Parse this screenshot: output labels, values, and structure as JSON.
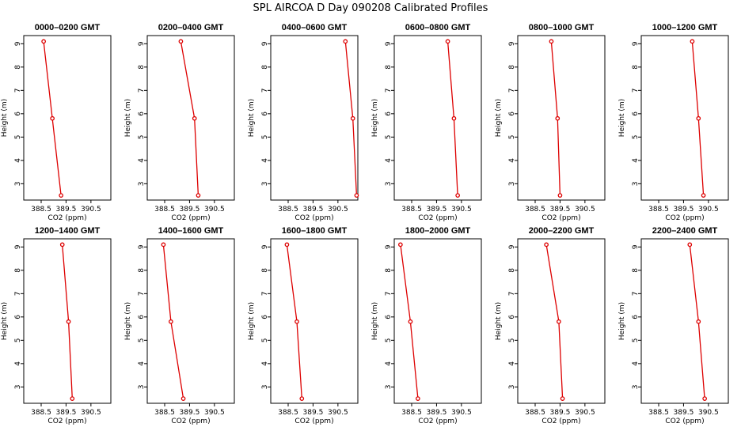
{
  "title": "SPL AIRCOA D  Day 090208  Calibrated Profiles",
  "chart_data": {
    "type": "line",
    "xlabel": "CO2 (ppm)",
    "ylabel": "Height (m)",
    "xlim": [
      387.8,
      391.3
    ],
    "ylim": [
      2.3,
      9.35
    ],
    "xticks": [
      388.5,
      389.5,
      390.5
    ],
    "xtick_labels": [
      "388.5",
      "389.5",
      "390.5"
    ],
    "yticks": [
      3,
      4,
      5,
      6,
      7,
      8,
      9
    ],
    "colors": {
      "series": "#dd0000"
    },
    "heights": [
      9.1,
      5.8,
      2.5
    ],
    "panels": [
      {
        "title": "0000–0200 GMT",
        "co2": [
          388.6,
          388.95,
          389.3
        ]
      },
      {
        "title": "0200–0400 GMT",
        "co2": [
          389.15,
          389.7,
          389.85
        ]
      },
      {
        "title": "0400–0600 GMT",
        "co2": [
          390.8,
          391.1,
          391.25
        ]
      },
      {
        "title": "0600–0800 GMT",
        "co2": [
          389.95,
          390.2,
          390.35
        ]
      },
      {
        "title": "0800–1000 GMT",
        "co2": [
          389.15,
          389.4,
          389.5
        ]
      },
      {
        "title": "1000–1200 GMT",
        "co2": [
          389.85,
          390.1,
          390.3
        ]
      },
      {
        "title": "1200–1400 GMT",
        "co2": [
          389.35,
          389.6,
          389.75
        ]
      },
      {
        "title": "1400–1600 GMT",
        "co2": [
          388.45,
          388.75,
          389.25
        ]
      },
      {
        "title": "1600–1800 GMT",
        "co2": [
          388.45,
          388.85,
          389.05
        ]
      },
      {
        "title": "1800–2000 GMT",
        "co2": [
          388.05,
          388.45,
          388.75
        ]
      },
      {
        "title": "2000–2200 GMT",
        "co2": [
          388.95,
          389.45,
          389.6
        ]
      },
      {
        "title": "2200–2400 GMT",
        "co2": [
          389.75,
          390.1,
          390.35
        ]
      }
    ]
  }
}
